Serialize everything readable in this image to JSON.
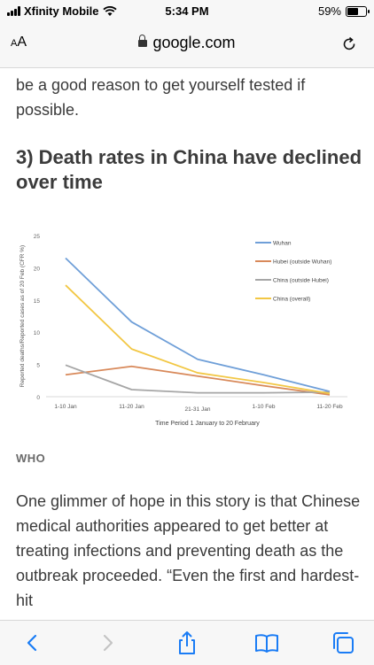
{
  "status_bar": {
    "carrier": "Xfinity Mobile",
    "time": "5:34 PM",
    "battery": "59%"
  },
  "browser": {
    "aa_label_large": "A",
    "aa_label_small": "A",
    "url": "google.com"
  },
  "article": {
    "para_1": "be a good reason to get yourself tested if possible.",
    "heading": "3) Death rates in China have declined over time",
    "source": "WHO",
    "para_2": "One glimmer of hope in this story is that Chinese medical authorities appeared to get better at treating infections and preventing death as the outbreak proceeded. “Even the first and hardest-hit"
  },
  "chart_data": {
    "type": "line",
    "categories": [
      "1-10 Jan",
      "11-20 Jan",
      "21-31 Jan",
      "1-10 Feb",
      "11-20 Feb"
    ],
    "xlabel": "Time Period 1 January to 20 February",
    "ylabel": "Reported deaths/Reported cases as of 20 Feb (CFR %)",
    "ylim": [
      0,
      25
    ],
    "yticks": [
      "0",
      "5",
      "10",
      "15",
      "20",
      "25"
    ],
    "legend_position": "top-right",
    "series": [
      {
        "name": "Wuhan",
        "color": "#6f9fd8",
        "values": [
          21.5,
          11.6,
          5.8,
          3.4,
          0.8
        ]
      },
      {
        "name": "Hubei (outside Wuhan)",
        "color": "#d8895a",
        "values": [
          3.4,
          4.7,
          3.2,
          1.7,
          0.3
        ]
      },
      {
        "name": "China (outside Hubei)",
        "color": "#a6a6a6",
        "values": [
          4.9,
          1.1,
          0.6,
          0.6,
          0.7
        ]
      },
      {
        "name": "China (overall)",
        "color": "#f2c744",
        "values": [
          17.3,
          7.4,
          3.7,
          2.2,
          0.5
        ]
      }
    ]
  }
}
